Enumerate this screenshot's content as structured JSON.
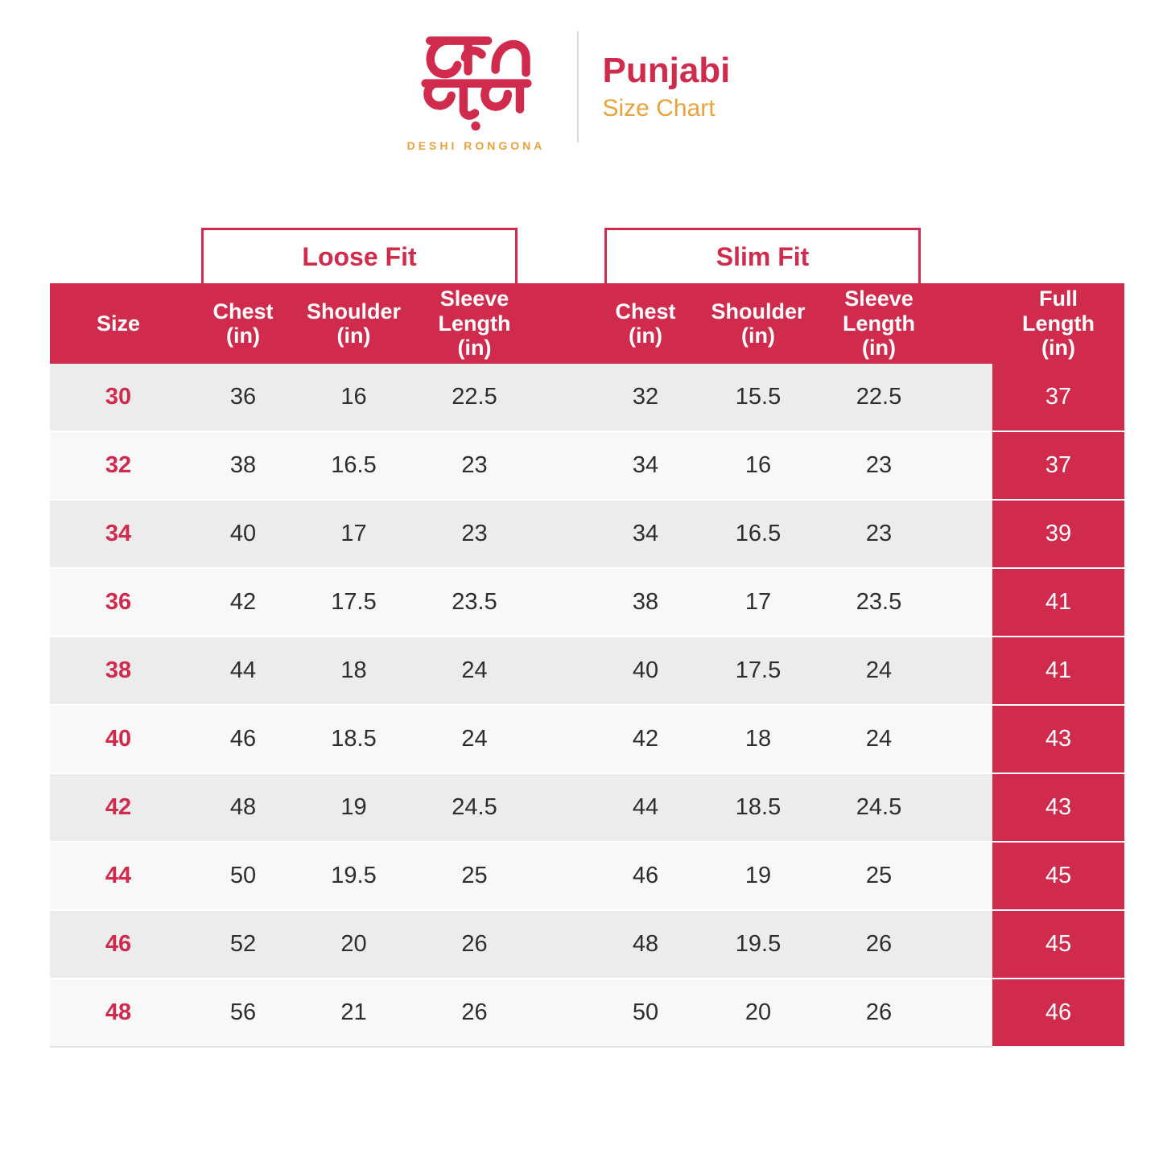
{
  "brand": {
    "logo_bengali": "দেশি রঙ্গনা",
    "logo_caption": "DESHI RONGONA",
    "title": "Punjabi",
    "subtitle": "Size Chart"
  },
  "fit_groups": {
    "loose_label": "Loose Fit",
    "slim_label": "Slim Fit"
  },
  "table": {
    "size_header": "Size",
    "loose": {
      "chest": "Chest\n(in)",
      "shoulder": "Shoulder\n(in)",
      "sleeve": "Sleeve\nLength\n(in)"
    },
    "slim": {
      "chest": "Chest\n(in)",
      "shoulder": "Shoulder\n(in)",
      "sleeve": "Sleeve\nLength\n(in)"
    },
    "full_length_header": "Full\nLength\n(in)"
  },
  "chart_data": {
    "type": "table",
    "title": "Punjabi Size Chart",
    "column_groups": [
      "",
      "Loose Fit",
      "Loose Fit",
      "Loose Fit",
      "Slim Fit",
      "Slim Fit",
      "Slim Fit",
      ""
    ],
    "columns": [
      "Size",
      "Chest (in)",
      "Shoulder (in)",
      "Sleeve Length (in)",
      "Chest (in)",
      "Shoulder (in)",
      "Sleeve Length (in)",
      "Full Length (in)"
    ],
    "rows": [
      [
        30,
        36,
        16,
        22.5,
        32,
        15.5,
        22.5,
        37
      ],
      [
        32,
        38,
        16.5,
        23,
        34,
        16,
        23,
        37
      ],
      [
        34,
        40,
        17,
        23,
        34,
        16.5,
        23,
        39
      ],
      [
        36,
        42,
        17.5,
        23.5,
        38,
        17,
        23.5,
        41
      ],
      [
        38,
        44,
        18,
        24,
        40,
        17.5,
        24,
        41
      ],
      [
        40,
        46,
        18.5,
        24,
        42,
        18,
        24,
        43
      ],
      [
        42,
        48,
        19,
        24.5,
        44,
        18.5,
        24.5,
        43
      ],
      [
        44,
        50,
        19.5,
        25,
        46,
        19,
        25,
        45
      ],
      [
        46,
        52,
        20,
        26,
        48,
        19.5,
        26,
        45
      ],
      [
        48,
        56,
        21,
        26,
        50,
        20,
        26,
        46
      ]
    ]
  },
  "colors": {
    "crimson": "#D02A4D",
    "orange": "#ECA23B",
    "row_gray": "#ECECEC",
    "row_light": "#F8F8F8",
    "header_text": "#FFFFFF"
  }
}
